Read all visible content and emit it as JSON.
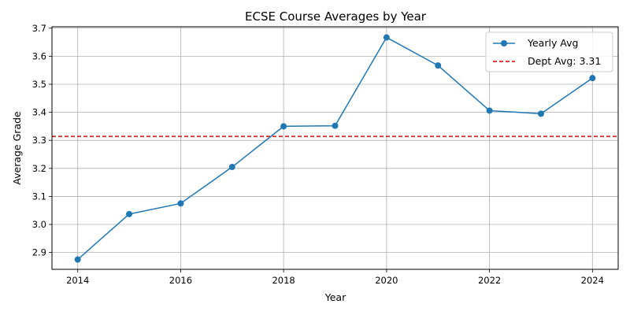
{
  "chart_data": {
    "type": "line",
    "title": "ECSE Course Averages by Year",
    "xlabel": "Year",
    "ylabel": "Average Grade",
    "x": [
      2014,
      2015,
      2016,
      2017,
      2018,
      2019,
      2020,
      2021,
      2022,
      2023,
      2024
    ],
    "xlim": [
      2013.5,
      2024.5
    ],
    "ylim": [
      2.84,
      3.705
    ],
    "xticks": [
      2014,
      2016,
      2018,
      2020,
      2022,
      2024
    ],
    "yticks": [
      2.9,
      3.0,
      3.1,
      3.2,
      3.3,
      3.4,
      3.5,
      3.6,
      3.7
    ],
    "grid": true,
    "legend_position": "top-right",
    "series": [
      {
        "name": "Yearly Avg",
        "color": "#1f77b4",
        "marker": "circle",
        "line_style": "solid",
        "values": [
          2.875,
          3.037,
          3.075,
          3.205,
          3.35,
          3.352,
          3.667,
          3.567,
          3.406,
          3.395,
          3.522
        ]
      }
    ],
    "reference_lines": [
      {
        "name": "Dept Avg: 3.31",
        "orientation": "horizontal",
        "y": 3.314,
        "color": "#d62728",
        "line_style": "dashed"
      }
    ]
  }
}
